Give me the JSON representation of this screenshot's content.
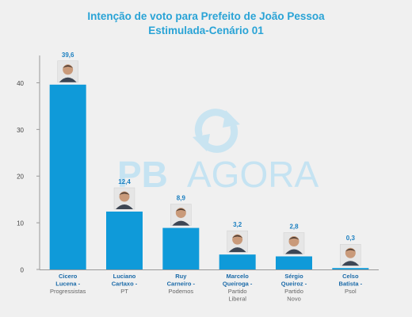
{
  "colors": {
    "bar": "#0f9ad9",
    "title": "#29a3d6",
    "value_label": "#1b7fc0",
    "candidate_name": "#1b6aa8",
    "party": "#666666",
    "axis": "#444444",
    "grid": "#cfcfcf",
    "watermark": "#c5e3f2"
  },
  "watermark": {
    "brand_left": "PB",
    "brand_right": "AGORA",
    "icon": "refresh-arrows-icon"
  },
  "chart_data": {
    "type": "bar",
    "title": "Intenção de voto para Prefeito de João Pessoa",
    "subtitle": "Estimulada-Cenário 01",
    "ylim": [
      0,
      45
    ],
    "yticks": [
      0,
      10,
      20,
      30,
      40
    ],
    "grid": false,
    "categories": [
      {
        "name": [
          "Cicero",
          "Lucena -"
        ],
        "party": [
          "Progressistas"
        ]
      },
      {
        "name": [
          "Luciano",
          "Cartaxo -"
        ],
        "party": [
          "PT"
        ]
      },
      {
        "name": [
          "Ruy",
          "Carneiro -"
        ],
        "party": [
          "Podemos"
        ]
      },
      {
        "name": [
          "Marcelo",
          "Queiroga -"
        ],
        "party": [
          "Partido",
          "Liberal"
        ]
      },
      {
        "name": [
          "Sérgio",
          "Queiroz -"
        ],
        "party": [
          "Partido",
          "Novo"
        ]
      },
      {
        "name": [
          "Celso",
          "Batista -"
        ],
        "party": [
          "Psol"
        ]
      }
    ],
    "values": [
      39.6,
      12.4,
      8.9,
      3.2,
      2.8,
      0.3
    ],
    "value_labels": [
      "39,6",
      "12,4",
      "8,9",
      "3,2",
      "2,8",
      "0,3"
    ],
    "images": [
      "candidate-photo-cicero-lucena",
      "candidate-photo-luciano-cartaxo",
      "candidate-photo-ruy-carneiro",
      "candidate-photo-marcelo-queiroga",
      "candidate-photo-sergio-queiroz",
      "candidate-photo-celso-batista"
    ]
  }
}
